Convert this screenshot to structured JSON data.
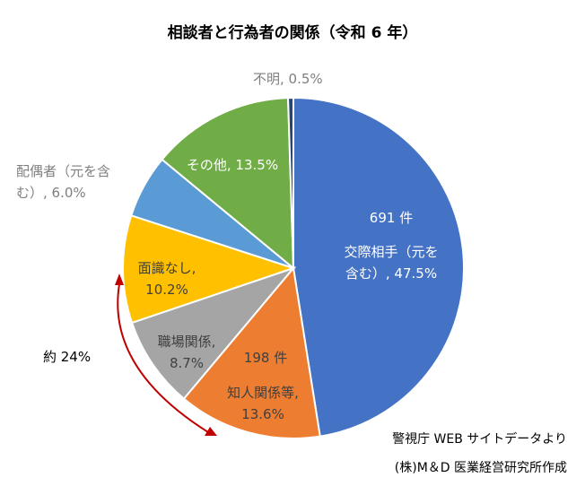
{
  "chart_data": {
    "type": "pie",
    "title": "相談者と行為者の関係（令和 6 年）",
    "slices": [
      {
        "key": "koryu",
        "label": "交際相手（元を含む）",
        "label_lines": [
          "交際相手（元を",
          "含む）, 47.5%"
        ],
        "count_text": "691 件",
        "value": 47.5,
        "color": "#4472C4",
        "text_color": "#ffffff"
      },
      {
        "key": "chijin",
        "label": "知人関係等",
        "label_lines": [
          "知人関係等,",
          "13.6%"
        ],
        "count_text": "198 件",
        "value": 13.6,
        "color": "#ED7D31",
        "text_color": "#404040"
      },
      {
        "key": "shokuba",
        "label": "職場関係",
        "label_lines": [
          "職場関係,",
          "8.7%"
        ],
        "count_text": "",
        "value": 8.7,
        "color": "#A5A5A5",
        "text_color": "#404040"
      },
      {
        "key": "menshiki",
        "label": "面識なし",
        "label_lines": [
          "面識なし,",
          "10.2%"
        ],
        "count_text": "",
        "value": 10.2,
        "color": "#FFC000",
        "text_color": "#404040"
      },
      {
        "key": "haigu",
        "label": "配偶者（元を含む）",
        "label_lines": [
          "配偶者（元を含",
          "む）, 6.0%"
        ],
        "count_text": "",
        "value": 6.0,
        "color": "#5B9BD5",
        "text_color": "#7f7f7f"
      },
      {
        "key": "sonota",
        "label": "その他",
        "label_lines": [
          "その他, 13.5%"
        ],
        "count_text": "",
        "value": 13.5,
        "color": "#70AD47",
        "text_color": "#ffffff"
      },
      {
        "key": "fumei",
        "label": "不明",
        "label_lines": [
          "不明, 0.5%"
        ],
        "count_text": "",
        "value": 0.5,
        "color": "#264478",
        "text_color": "#7f7f7f"
      }
    ],
    "annotation": {
      "text": "約 24%",
      "color": "#C00000"
    },
    "source_lines": [
      "警視庁 WEB サイトデータより",
      "(株)M＆D 医業経営研究所作成"
    ]
  }
}
